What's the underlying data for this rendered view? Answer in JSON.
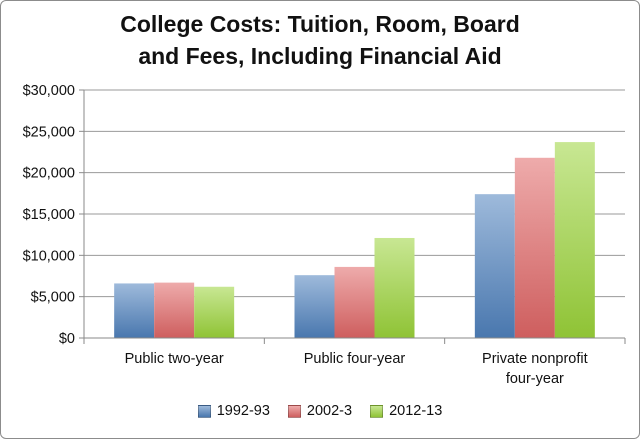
{
  "chart_data": {
    "type": "bar",
    "title_lines": [
      "College Costs: Tuition, Room, Board",
      "and Fees, Including Financial Aid"
    ],
    "categories": [
      [
        "Public two-year"
      ],
      [
        "Public four-year"
      ],
      [
        "Private nonprofit",
        "four-year"
      ]
    ],
    "series": [
      {
        "name": "1992-93",
        "values": [
          6600,
          7600,
          17400
        ],
        "color": "#4f81bd"
      },
      {
        "name": "2002-3",
        "values": [
          6700,
          8600,
          21800
        ],
        "color": "#e06666"
      },
      {
        "name": "2012-13",
        "values": [
          6200,
          12100,
          23700
        ],
        "color": "#9bd43a"
      }
    ],
    "ylim": [
      0,
      30000
    ],
    "yticks": [
      0,
      5000,
      10000,
      15000,
      20000,
      25000,
      30000
    ],
    "ytick_labels": [
      "$0",
      "$5,000",
      "$10,000",
      "$15,000",
      "$20,000",
      "$25,000",
      "$30,000"
    ],
    "grid": true,
    "legend_position": "bottom"
  }
}
